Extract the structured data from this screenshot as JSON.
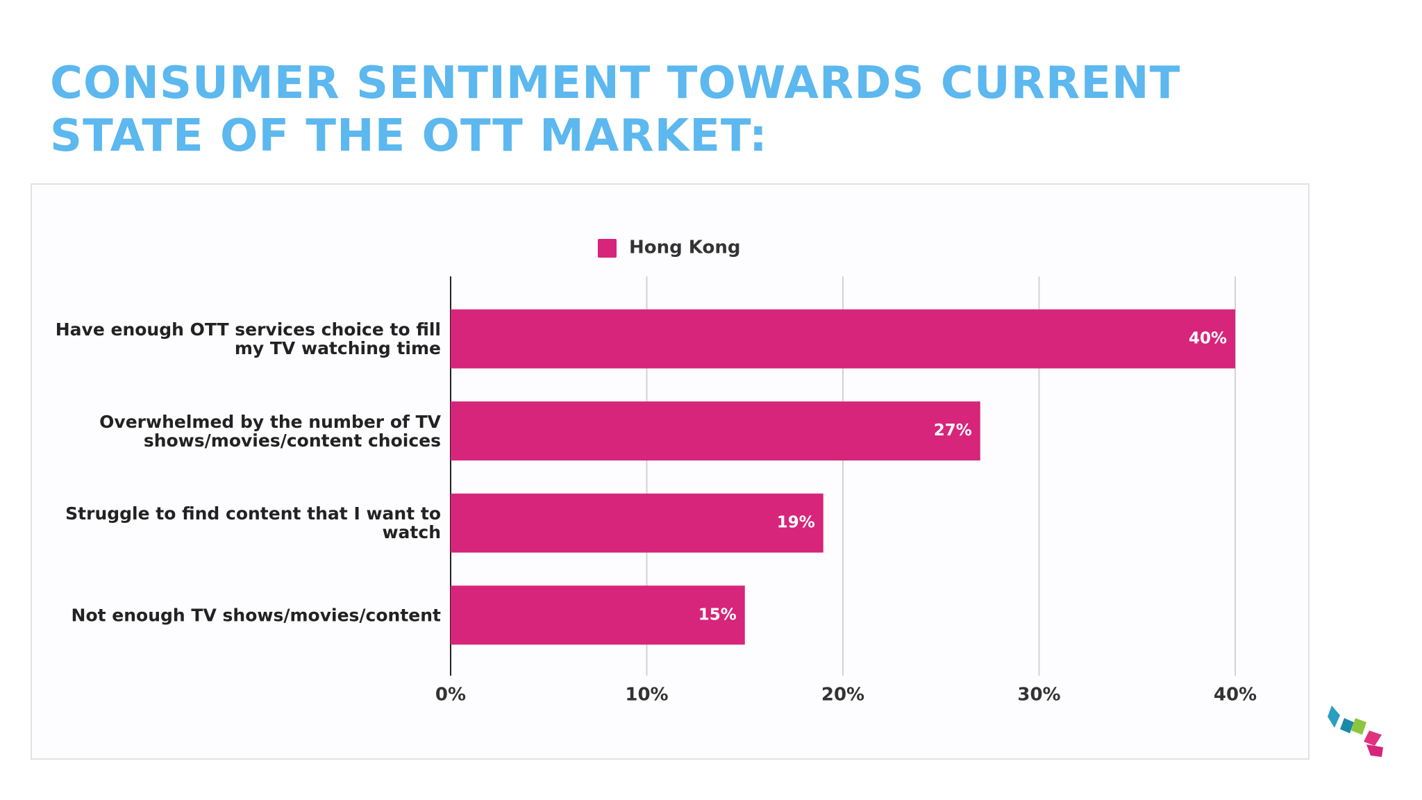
{
  "title": "CONSUMER SENTIMENT TOWARDS CURRENT STATE OF THE OTT MARKET:",
  "chart_data": {
    "type": "bar",
    "orientation": "horizontal",
    "categories": [
      "Have enough OTT services choice to fill my TV watching time",
      "Overwhelmed by the number of TV shows/movies/content choices",
      "Struggle to find content that I want to watch",
      "Not enough TV shows/movies/content"
    ],
    "series": [
      {
        "name": "Hong Kong",
        "color": "#d6257a",
        "values": [
          40,
          27,
          19,
          15
        ],
        "value_labels": [
          "40%",
          "27%",
          "19%",
          "15%"
        ]
      }
    ],
    "xlim": [
      0,
      40
    ],
    "xticks": [
      {
        "value": 0,
        "label": "0%"
      },
      {
        "value": 10,
        "label": "10%"
      },
      {
        "value": 20,
        "label": "20%"
      },
      {
        "value": 30,
        "label": "30%"
      },
      {
        "value": 40,
        "label": "40%"
      }
    ],
    "grid": true,
    "legend": "top"
  }
}
